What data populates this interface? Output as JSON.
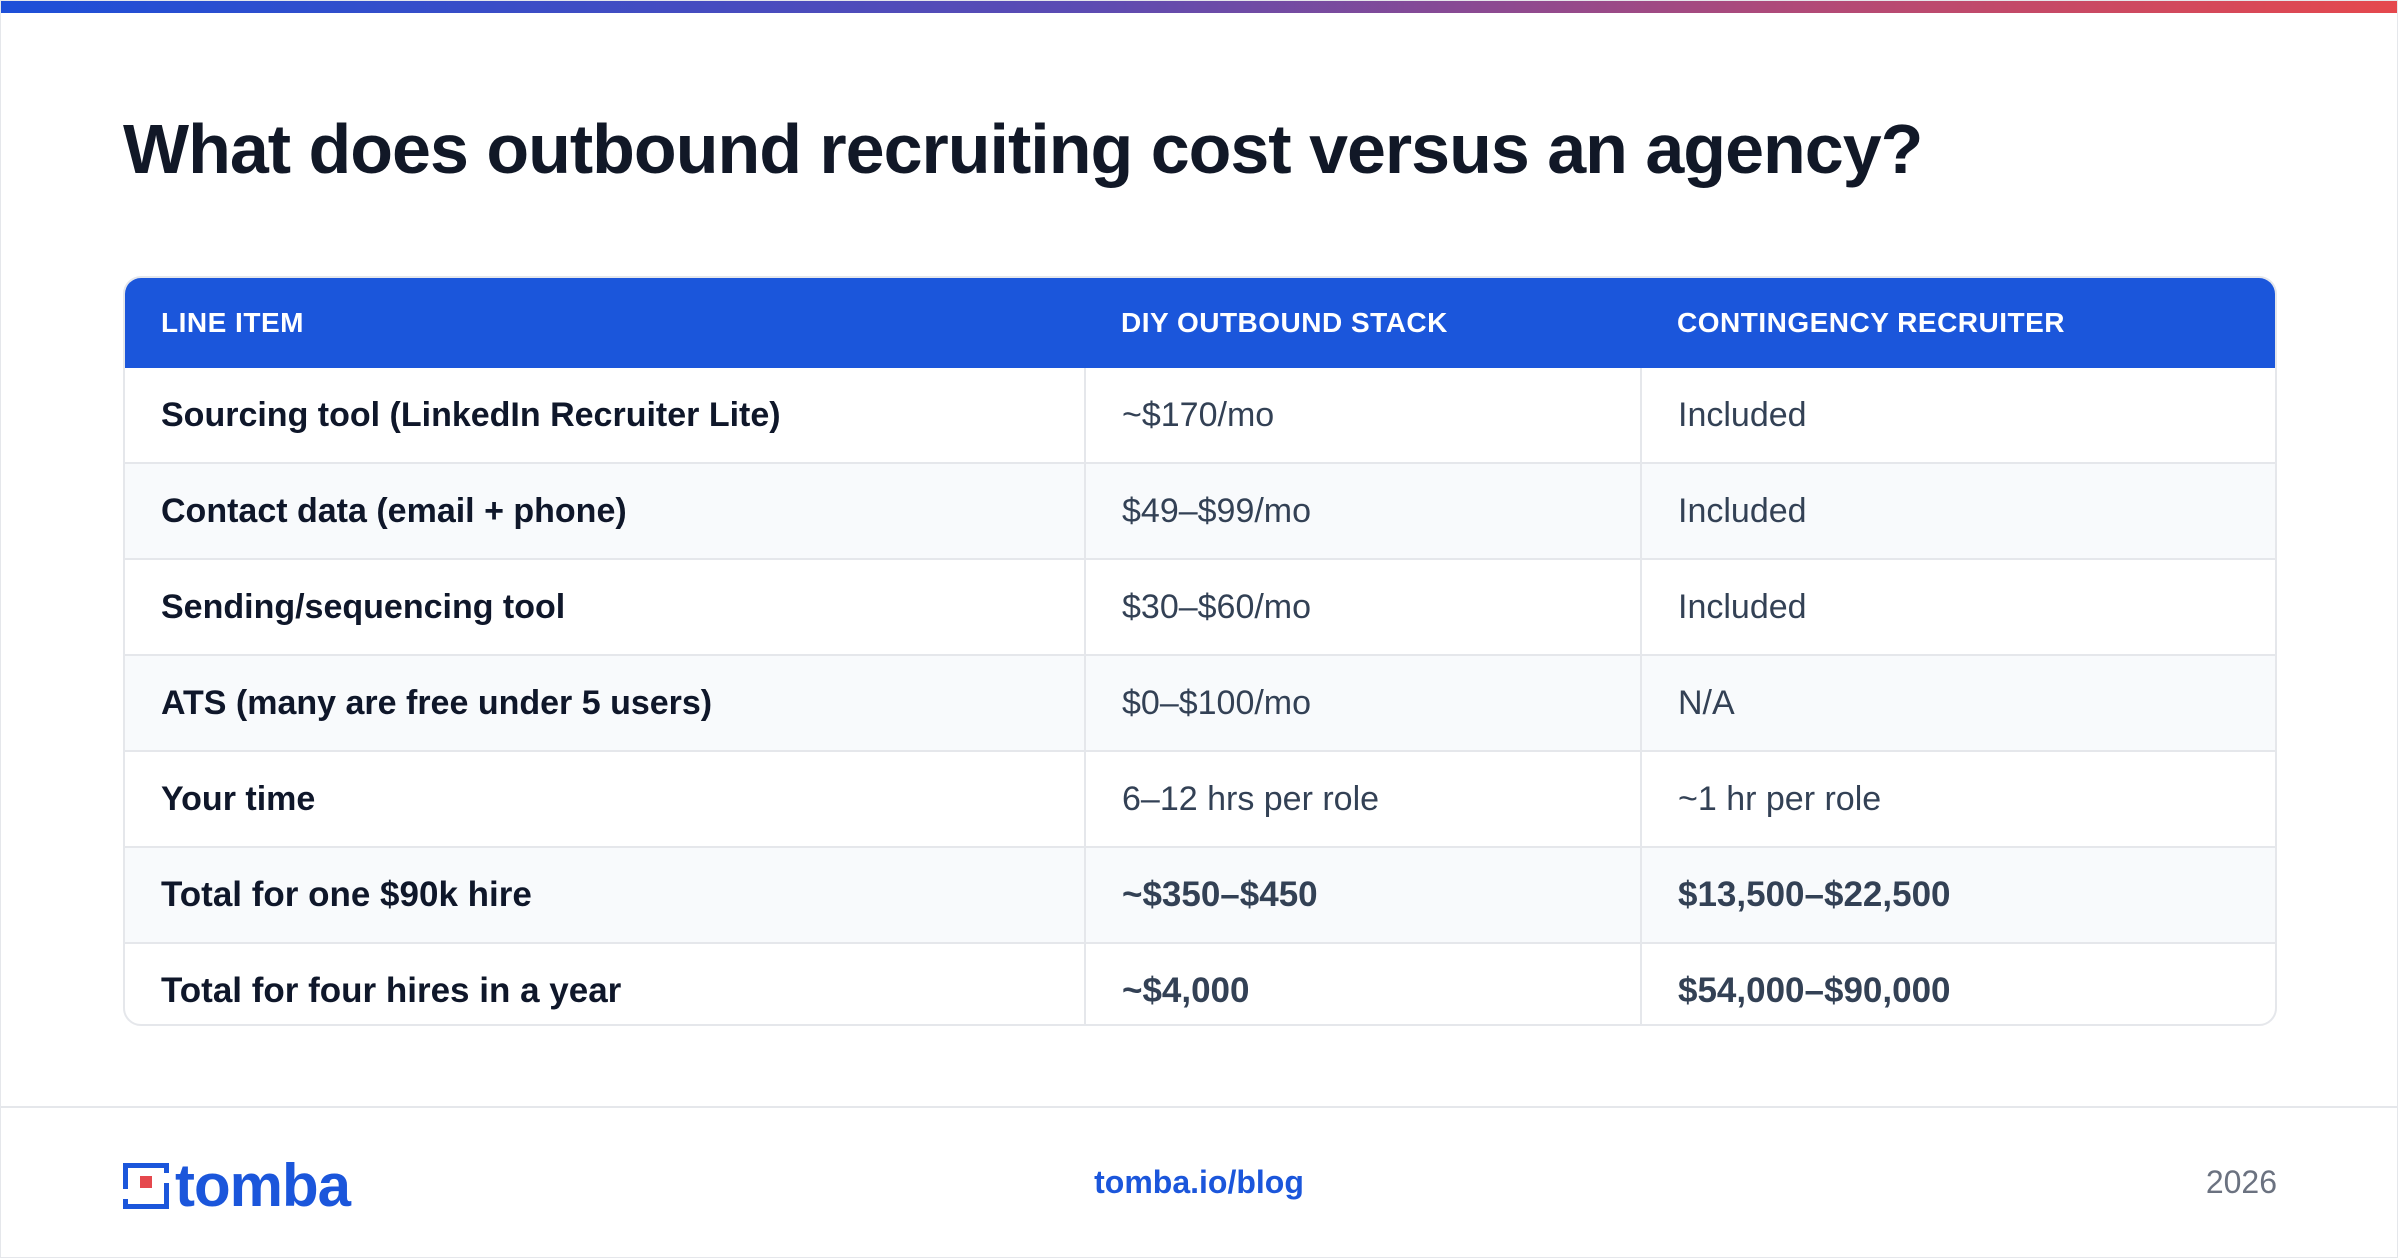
{
  "title": "What does outbound recruiting cost versus an agency?",
  "table": {
    "headers": [
      "LINE ITEM",
      "DIY OUTBOUND STACK",
      "CONTINGENCY RECRUITER"
    ],
    "rows": [
      [
        "Sourcing tool (LinkedIn Recruiter Lite)",
        "~$170/mo",
        "Included"
      ],
      [
        "Contact data (email + phone)",
        "$49–$99/mo",
        "Included"
      ],
      [
        "Sending/sequencing tool",
        "$30–$60/mo",
        "Included"
      ],
      [
        "ATS (many are free under 5 users)",
        "$0–$100/mo",
        "N/A"
      ],
      [
        "Your time",
        "6–12 hrs per role",
        "~1 hr per role"
      ],
      [
        "Total for one $90k hire",
        "~$350–$450",
        "$13,500–$22,500"
      ],
      [
        "Total for four hires in a year",
        "~$4,000",
        "$54,000–$90,000"
      ]
    ]
  },
  "footer": {
    "logo_text": "tomba",
    "link": "tomba.io/blog",
    "year": "2026"
  },
  "colors": {
    "brand_blue": "#1b56db",
    "accent_red": "#e5484d",
    "title_text": "#111827"
  },
  "icons": {
    "logo_mark": "tomba-logo-icon"
  }
}
